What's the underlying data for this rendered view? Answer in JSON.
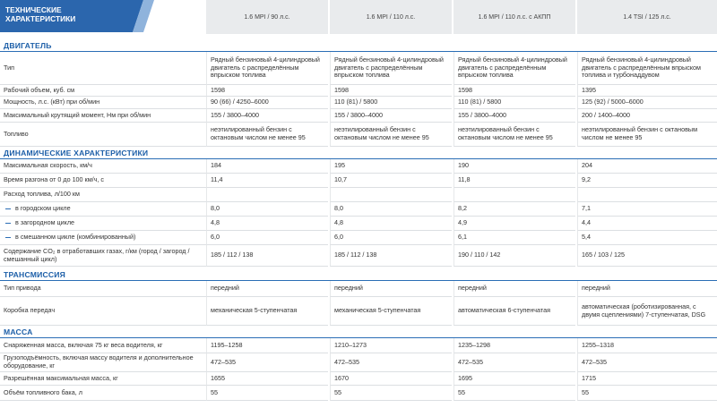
{
  "header": {
    "title": "ТЕХНИЧЕСКИЕ ХАРАКТЕРИСТИКИ",
    "columns": [
      "1.6 MPI / 90 л.с.",
      "1.6 MPI / 110 л.с.",
      "1.6 MPI / 110 л.с. с АКПП",
      "1.4 TSI / 125 л.с."
    ]
  },
  "sections": [
    {
      "title": "ДВИГАТЕЛЬ",
      "rows": [
        {
          "label": "Тип",
          "values": [
            "Рядный бензиновый 4-цилиндровый двигатель с распределённым впрыском топлива",
            "Рядный бензиновый 4-цилиндровый двигатель с распределённым впрыском топлива",
            "Рядный бензиновый 4-цилиндровый двигатель с распределённым впрыском топлива",
            "Рядный бензиновый 4-цилиндровый двигатель с распределённым впрыском топлива и турбонаддувом"
          ]
        },
        {
          "label": "Рабочий объем, куб. см",
          "values": [
            "1598",
            "1598",
            "1598",
            "1395"
          ]
        },
        {
          "label": "Мощность, л.с. (кВт) при об/мин",
          "values": [
            "90 (66) / 4250–6000",
            "110 (81) / 5800",
            "110 (81) / 5800",
            "125 (92) / 5000–6000"
          ]
        },
        {
          "label": "Максимальный крутящий момент, Нм при об/мин",
          "values": [
            "155 / 3800–4000",
            "155 / 3800–4000",
            "155 / 3800–4000",
            "200 / 1400–4000"
          ]
        },
        {
          "label": "Топливо",
          "values": [
            "неэтилированный бензин с октановым числом не менее 95",
            "неэтилированный бензин с октановым числом не менее 95",
            "неэтилированный бензин с октановым числом не менее 95",
            "неэтилированный бензин с октановым числом не менее 95"
          ]
        }
      ]
    },
    {
      "title": "ДИНАМИЧЕСКИЕ ХАРАКТЕРИСТИКИ",
      "rows": [
        {
          "label": "Максимальная скорость, км/ч",
          "values": [
            "184",
            "195",
            "190",
            "204"
          ]
        },
        {
          "label": "Время разгона от 0 до 100 км/ч, с",
          "values": [
            "11,4",
            "10,7",
            "11,8",
            "9,2"
          ]
        },
        {
          "label": "Расход топлива, л/100 км"
        },
        {
          "label": "в городском цикле",
          "values": [
            "8,0",
            "8,0",
            "8,2",
            "7,1"
          ]
        },
        {
          "label": "в загородном цикле",
          "values": [
            "4,8",
            "4,8",
            "4,9",
            "4,4"
          ]
        },
        {
          "label": "в смешанном цикле (комбинированный)",
          "values": [
            "6,0",
            "6,0",
            "6,1",
            "5,4"
          ]
        },
        {
          "label": "Содержание CO₂ в отработавших газах, г/км (город / загород / смешанный цикл)",
          "values": [
            "185 / 112 / 138",
            "185 / 112 / 138",
            "190 / 110 / 142",
            "165 / 103 / 125"
          ]
        }
      ]
    },
    {
      "title": "ТРАНСМИССИЯ",
      "rows": [
        {
          "label": "Тип привода",
          "values": [
            "передний",
            "передний",
            "передний",
            "передний"
          ]
        },
        {
          "label": "Коробка передач",
          "values": [
            "механическая 5-ступенчатая",
            "механическая 5-ступенчатая",
            "автоматическая 6-ступенчатая",
            "автоматическая (роботизированная, с двумя сцеплениями) 7-ступенчатая, DSG"
          ]
        }
      ]
    },
    {
      "title": "МАССА",
      "rows": [
        {
          "label": "Снаряженная масса, включая 75 кг веса водителя, кг",
          "values": [
            "1195–1258",
            "1210–1273",
            "1235–1298",
            "1255–1318"
          ]
        },
        {
          "label": "Грузоподъёмность, включая массу водителя и дополнительное оборудование, кг",
          "values": [
            "472–535",
            "472–535",
            "472–535",
            "472–535"
          ]
        },
        {
          "label": "Разрешённая максимальная масса, кг",
          "values": [
            "1655",
            "1670",
            "1695",
            "1715"
          ]
        },
        {
          "label": "Объём топливного бака, л",
          "values": [
            "55",
            "55",
            "55",
            "55"
          ]
        }
      ]
    }
  ]
}
